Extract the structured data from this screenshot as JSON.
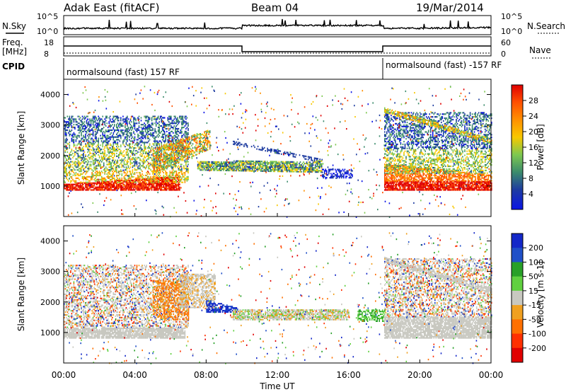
{
  "header": {
    "site": "Adak East (fitACF)",
    "beam": "Beam 04",
    "date": "19/Mar/2014"
  },
  "labels": {
    "nsky": "N.Sky",
    "nsearch": "N.Search",
    "freq": "Freq.",
    "freq_unit": "[MHz]",
    "nave": "Nave",
    "cpid": "CPID",
    "cpid_left": "normalsound (fast) 157 RF",
    "cpid_right": "normalsound (fast) -157 RF",
    "noise_top": "10^5",
    "noise_bottom": "10^0",
    "noise_top_r": "10^5",
    "noise_bottom_r": "10^0",
    "freq_top": "18",
    "freq_bottom": "8",
    "nave_top": "60",
    "nave_bottom": "0"
  },
  "chart_data": [
    {
      "type": "heatmap",
      "name": "power",
      "ylabel": "Slant Range [km]",
      "colorbar_label": "Power [dB]",
      "colorbar_ticks": [
        "28",
        "24",
        "20",
        "16",
        "12",
        "8",
        "4"
      ],
      "colorbar_colors": [
        "#e00000",
        "#ff5000",
        "#ff9000",
        "#f8c800",
        "#7ec850",
        "#3c8c6c",
        "#1e3ca0",
        "#0a14e6"
      ],
      "yticks": [
        "4000",
        "3000",
        "2000",
        "1000"
      ],
      "ylim": [
        0,
        4500
      ],
      "xlim": [
        "00:00",
        "24:00"
      ]
    },
    {
      "type": "heatmap",
      "name": "velocity",
      "ylabel": "Slant Range [km]",
      "colorbar_label": "Velocity [m s-1]",
      "colorbar_ticks": [
        "200",
        "100",
        "50",
        "15",
        "-15",
        "-50",
        "-100",
        "-200"
      ],
      "colorbar_colors": [
        "#1428c8",
        "#2050c8",
        "#28a028",
        "#60d040",
        "#c8c8c0",
        "#f0a020",
        "#ff7000",
        "#ff3000",
        "#e00000"
      ],
      "yticks": [
        "4000",
        "3000",
        "2000",
        "1000"
      ],
      "ylim": [
        0,
        4500
      ],
      "xlim": [
        "00:00",
        "24:00"
      ]
    }
  ],
  "xaxis": {
    "ticks": [
      "00:00",
      "04:00",
      "08:00",
      "12:00",
      "16:00",
      "20:00",
      "00:00"
    ],
    "label": "Time UT"
  }
}
